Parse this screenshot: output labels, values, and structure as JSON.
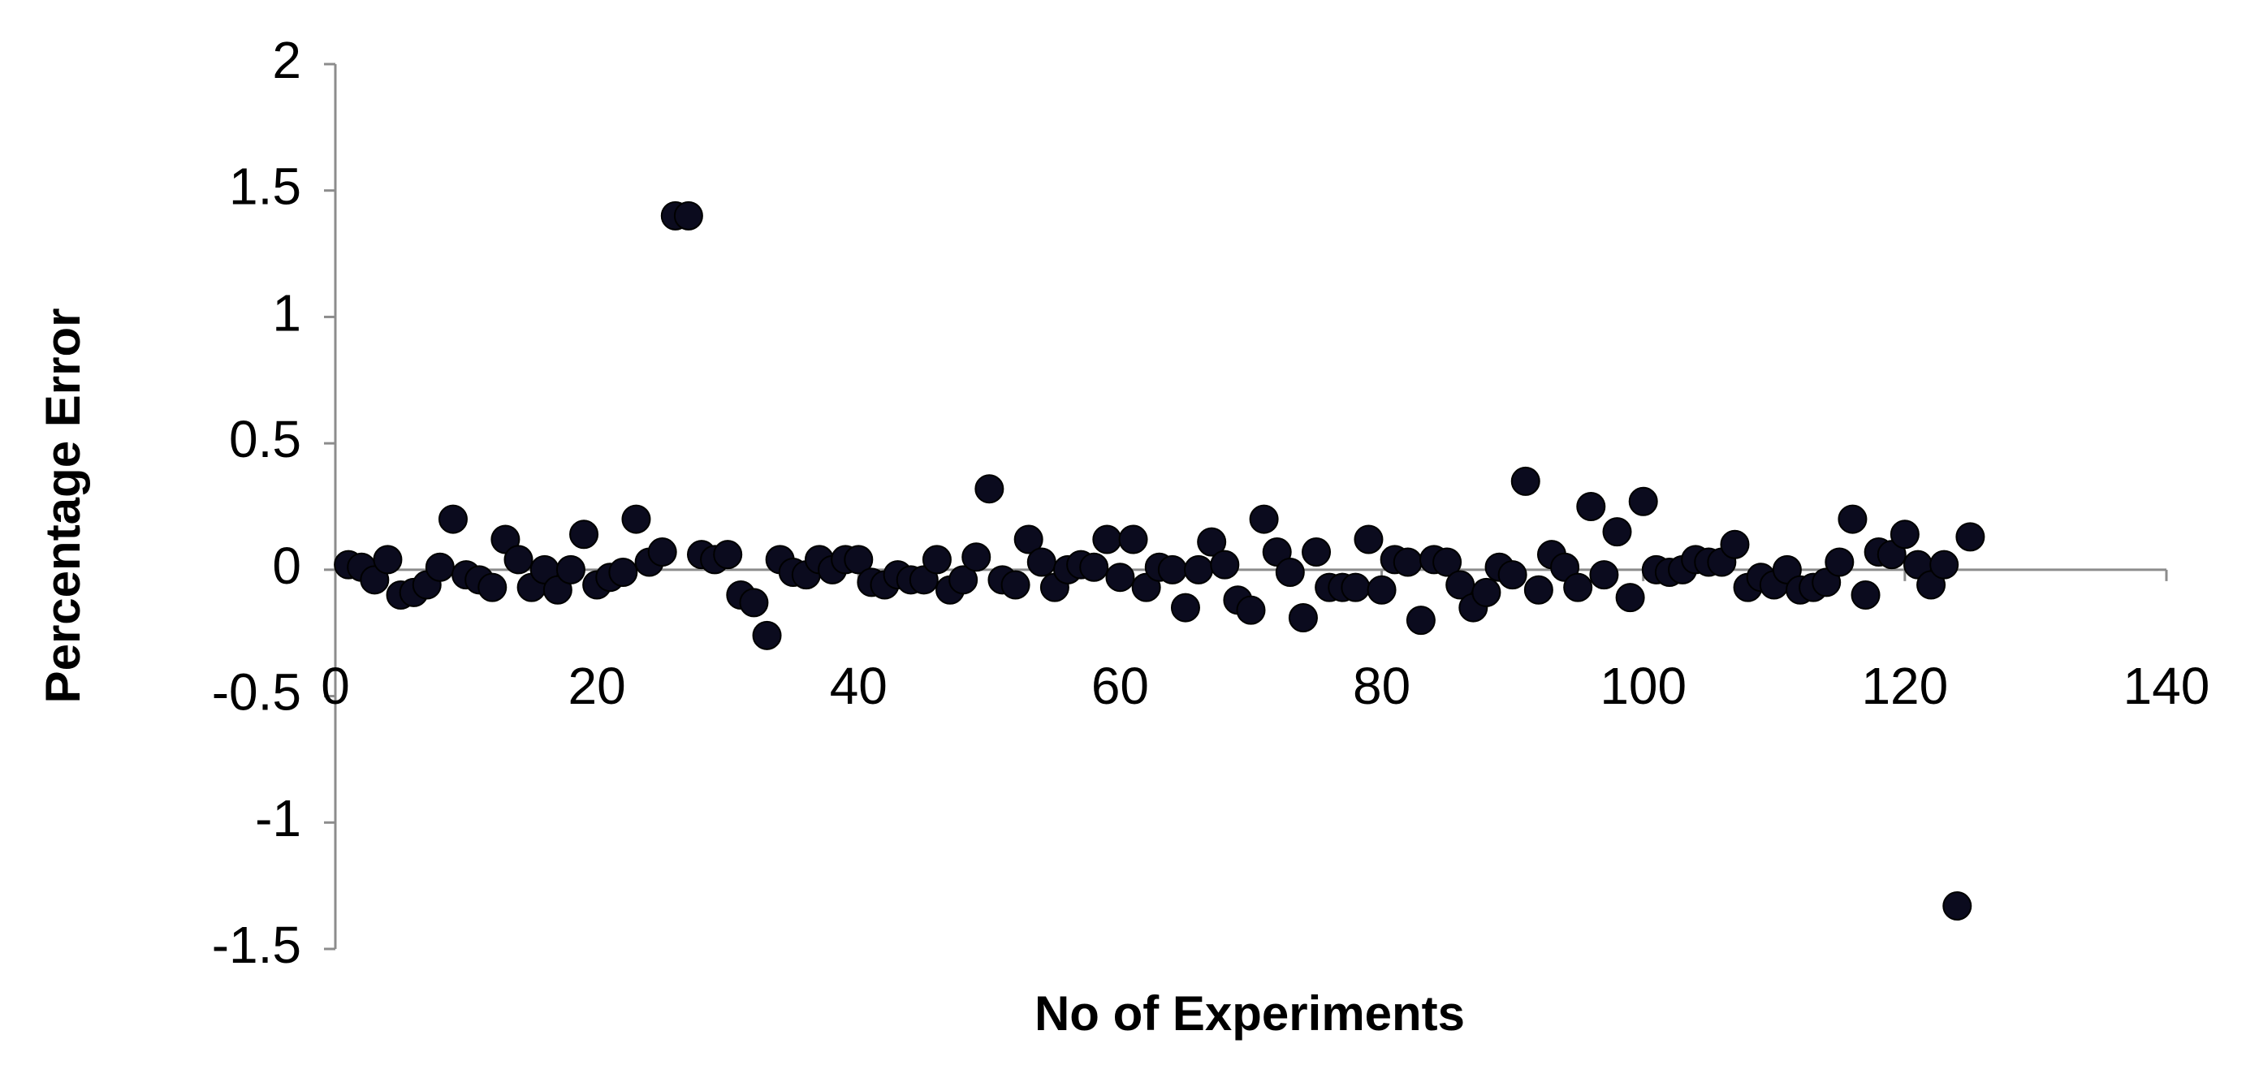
{
  "chart_data": {
    "type": "scatter",
    "x_label": "No of Experiments",
    "y_label": "Percentage Error",
    "xlim": [
      0,
      140
    ],
    "xticks": [
      0,
      20,
      40,
      60,
      80,
      100,
      120,
      140
    ],
    "ylim": [
      -1.5,
      2
    ],
    "yticks": [
      -1.5,
      -1,
      -0.5,
      0,
      0.5,
      1,
      1.5,
      2
    ],
    "grid": false,
    "series": [
      {
        "color": "#0b0b1e",
        "x": [
          1,
          2,
          3,
          4,
          5,
          6,
          7,
          8,
          9,
          10,
          11,
          12,
          13,
          14,
          15,
          16,
          17,
          18,
          19,
          20,
          21,
          22,
          23,
          24,
          25,
          26,
          27,
          28,
          29,
          30,
          31,
          32,
          33,
          34,
          35,
          36,
          37,
          38,
          39,
          40,
          41,
          42,
          43,
          44,
          45,
          46,
          47,
          48,
          49,
          50,
          51,
          52,
          53,
          54,
          55,
          56,
          57,
          58,
          59,
          60,
          61,
          62,
          63,
          64,
          65,
          66,
          67,
          68,
          69,
          70,
          71,
          72,
          73,
          74,
          75,
          76,
          77,
          78,
          79,
          80,
          81,
          82,
          83,
          84,
          85,
          86,
          87,
          88,
          89,
          90,
          91,
          92,
          93,
          94,
          95,
          96,
          97,
          98,
          99,
          100,
          101,
          102,
          103,
          104,
          105,
          106,
          107,
          108,
          109,
          110,
          111,
          112,
          113,
          114,
          115,
          116,
          117,
          118,
          119,
          120,
          121,
          122,
          123,
          124,
          125
        ],
        "values": [
          0.02,
          0.01,
          -0.04,
          0.04,
          -0.1,
          -0.09,
          -0.06,
          0.01,
          0.2,
          -0.02,
          -0.04,
          -0.07,
          0.12,
          0.04,
          -0.07,
          0,
          -0.08,
          0,
          0.14,
          -0.06,
          -0.03,
          -0.01,
          0.2,
          0.03,
          0.07,
          1.4,
          1.4,
          0.06,
          0.04,
          0.06,
          -0.1,
          -0.13,
          -0.26,
          0.04,
          -0.01,
          -0.02,
          0.04,
          0,
          0.04,
          0.04,
          -0.05,
          -0.06,
          -0.02,
          -0.04,
          -0.04,
          0.04,
          -0.08,
          -0.04,
          0.05,
          0.32,
          -0.04,
          -0.06,
          0.12,
          0.03,
          -0.07,
          0,
          0.02,
          0.01,
          0.12,
          -0.03,
          0.12,
          -0.07,
          0.01,
          0,
          -0.15,
          0,
          0.11,
          0.02,
          -0.12,
          -0.16,
          0.2,
          0.07,
          -0.01,
          -0.19,
          0.07,
          -0.07,
          -0.07,
          -0.07,
          0.12,
          -0.08,
          0.04,
          0.03,
          -0.2,
          0.04,
          0.03,
          -0.06,
          -0.15,
          -0.09,
          0.01,
          -0.02,
          0.35,
          -0.08,
          0.06,
          0.01,
          -0.07,
          0.25,
          -0.02,
          0.15,
          -0.11,
          0.27,
          0,
          -0.01,
          0,
          0.04,
          0.03,
          0.03,
          0.1,
          -0.07,
          -0.03,
          -0.06,
          0,
          -0.08,
          -0.07,
          -0.05,
          0.03,
          0.2,
          -0.1,
          0.07,
          0.06,
          0.14,
          0.02,
          -0.06,
          0.02,
          -1.33,
          0.13
        ]
      }
    ]
  }
}
